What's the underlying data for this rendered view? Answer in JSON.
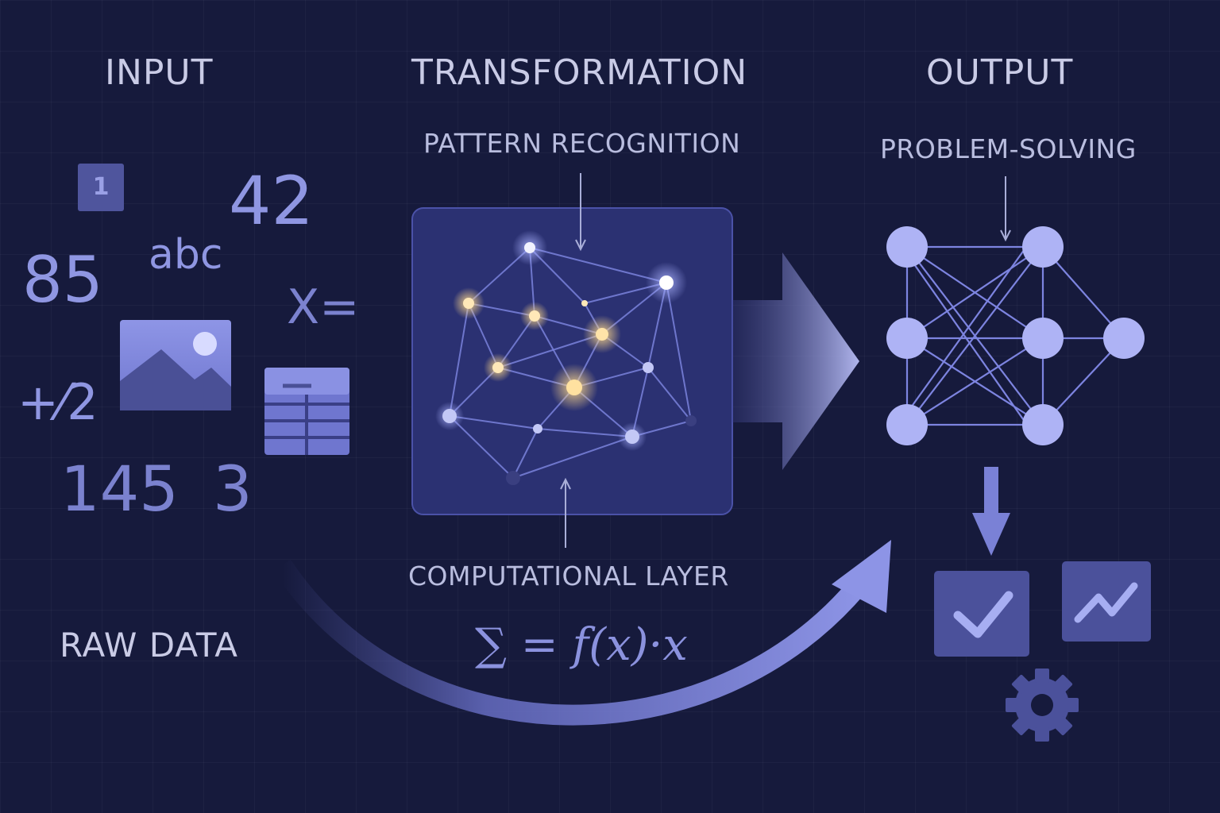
{
  "sections": {
    "input": "INPUT",
    "transformation": "TRANSFORMATION",
    "output": "OUTPUT"
  },
  "labels": {
    "pattern_recognition": "PATTERN RECOGNITION",
    "computational_layer": "COMPUTATIONAL LAYER",
    "problem_solving": "PROBLEM-SOLVING",
    "raw_data": "RAW DATA"
  },
  "input_tokens": {
    "badge": "1",
    "n42": "42",
    "n85": "85",
    "abc": "abc",
    "x_eq": "X=",
    "half": "+⁄2",
    "n145": "145",
    "n3": "3"
  },
  "formula": "∑ = f(x)·x",
  "icons": [
    "image-icon",
    "table-icon",
    "network-icon",
    "neural-network-icon",
    "checkmark-icon",
    "trend-chart-icon",
    "gear-icon"
  ],
  "colors": {
    "background": "#161a3c",
    "accent": "#8f96e2",
    "node": "#b7bcf7",
    "glow": "#ffe7b0",
    "text": "#c9cbe6"
  }
}
